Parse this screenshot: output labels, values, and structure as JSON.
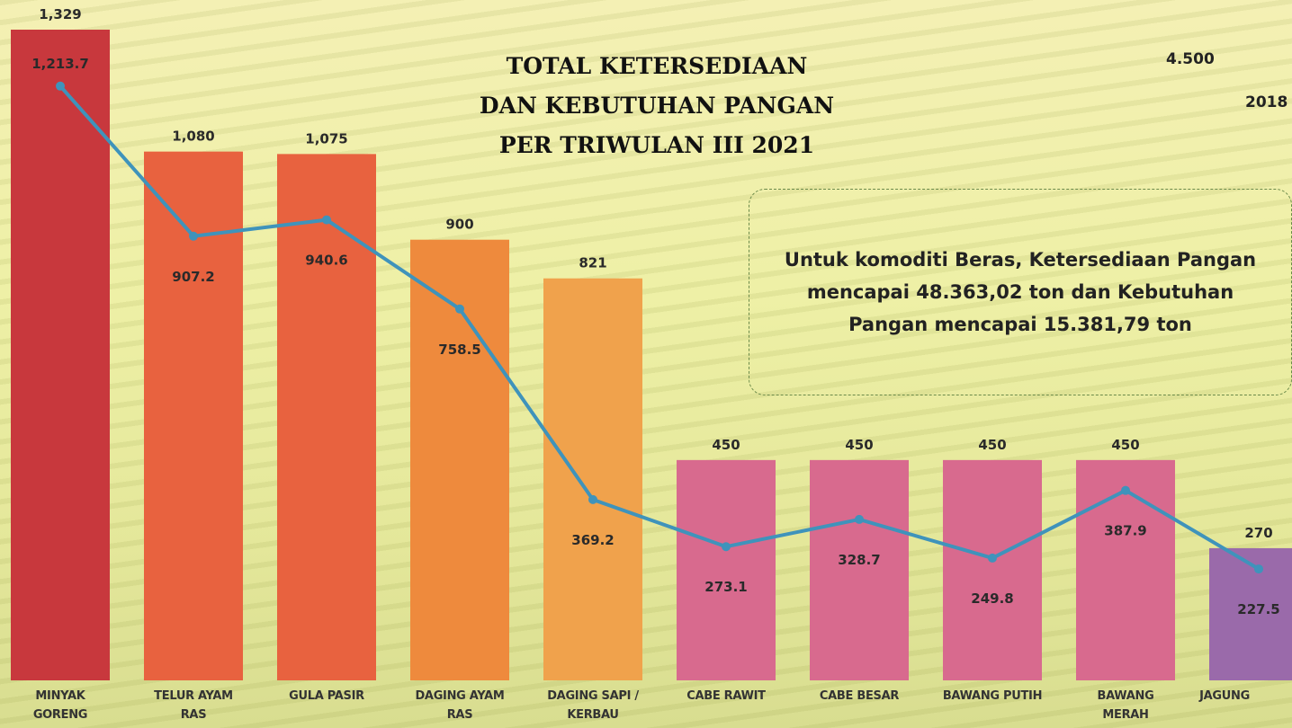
{
  "chart_data": {
    "type": "bar_line",
    "title": "TOTAL KETERSEDIAAN\nDAN KEBUTUHAN PANGAN\nPER TRIWULAN III 2021",
    "annotations": [
      "4.500",
      "2018"
    ],
    "note": "Untuk komoditi Beras, Ketersediaan Pangan mencapai 48.363,02 ton dan Kebutuhan Pangan mencapai 15.381,79 ton",
    "categories": [
      "MINYAK\nGORENG",
      "TELUR AYAM\nRAS",
      "GULA PASIR",
      "DAGING AYAM\nRAS",
      "DAGING SAPI /\nKERBAU",
      "CABE RAWIT",
      "CABE BESAR",
      "BAWANG PUTIH",
      "BAWANG\nMERAH",
      "JAGUNG"
    ],
    "ylim": [
      0,
      1329
    ],
    "series": [
      {
        "kind": "bar",
        "colors": [
          "#c8383d",
          "#e8623f",
          "#e8623f",
          "#ee8a3d",
          "#f0a24c",
          "#d86a8e",
          "#d86a8e",
          "#d86a8e",
          "#d86a8e",
          "#9a6aaa"
        ],
        "values": [
          1329,
          1080,
          1075,
          900,
          821,
          450,
          450,
          450,
          450,
          270
        ],
        "value_labels": [
          "1,329",
          "1,080",
          "1,075",
          "900",
          "821",
          "450",
          "450",
          "450",
          "450",
          "270"
        ]
      },
      {
        "kind": "line",
        "color": "#3f93bb",
        "values": [
          1213.7,
          907.2,
          940.6,
          758.5,
          369.2,
          273.1,
          328.7,
          249.8,
          387.9,
          227.5
        ],
        "value_labels": [
          "1,213.7",
          "907.2",
          "940.6",
          "758.5",
          "369.2",
          "273.1",
          "328.7",
          "249.8",
          "387.9",
          "227.5"
        ]
      }
    ]
  }
}
